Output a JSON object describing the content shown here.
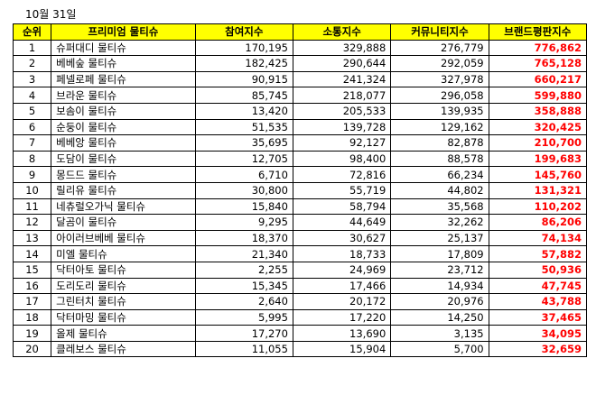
{
  "date_label": "10월 31일",
  "headers": [
    "순위",
    "프리미엄 물티슈",
    "참여지수",
    "소통지수",
    "커뮤니티지수",
    "브랜드평판지수"
  ],
  "rows": [
    [
      "1",
      "슈퍼대디 물티슈",
      "170,195",
      "329,888",
      "276,779",
      "776,862"
    ],
    [
      "2",
      "베베숲 물티슈",
      "182,425",
      "290,644",
      "292,059",
      "765,128"
    ],
    [
      "3",
      "페넬로페 물티슈",
      "90,915",
      "241,324",
      "327,978",
      "660,217"
    ],
    [
      "4",
      "브라운 물티슈",
      "85,745",
      "218,077",
      "296,058",
      "599,880"
    ],
    [
      "5",
      "보솜이 물티슈",
      "13,420",
      "205,533",
      "139,935",
      "358,888"
    ],
    [
      "6",
      "순둥이 물티슈",
      "51,535",
      "139,728",
      "129,162",
      "320,425"
    ],
    [
      "7",
      "베베앙 물티슈",
      "35,695",
      "92,127",
      "82,878",
      "210,700"
    ],
    [
      "8",
      "도담이 물티슈",
      "12,705",
      "98,400",
      "88,578",
      "199,683"
    ],
    [
      "9",
      "몽드드 물티슈",
      "6,710",
      "72,816",
      "66,234",
      "145,760"
    ],
    [
      "10",
      "릴리유 물티슈",
      "30,800",
      "55,719",
      "44,802",
      "131,321"
    ],
    [
      "11",
      "네츄럴오가닉 물티슈",
      "15,840",
      "58,794",
      "35,568",
      "110,202"
    ],
    [
      "12",
      "달곰이 물티슈",
      "9,295",
      "44,649",
      "32,262",
      "86,206"
    ],
    [
      "13",
      "아이러브베베 물티슈",
      "18,370",
      "30,627",
      "25,137",
      "74,134"
    ],
    [
      "14",
      "미엘 물티슈",
      "21,340",
      "18,733",
      "17,809",
      "57,882"
    ],
    [
      "15",
      "닥터아토 물티슈",
      "2,255",
      "24,969",
      "23,712",
      "50,936"
    ],
    [
      "16",
      "도리도리 물티슈",
      "15,345",
      "17,466",
      "14,934",
      "47,745"
    ],
    [
      "17",
      "그린터치 물티슈",
      "2,640",
      "20,172",
      "20,976",
      "43,788"
    ],
    [
      "18",
      "닥터마밍 물티슈",
      "5,995",
      "17,220",
      "14,250",
      "37,465"
    ],
    [
      "19",
      "올제 물티슈",
      "17,270",
      "13,690",
      "3,135",
      "34,095"
    ],
    [
      "20",
      "클레보스 물티슈",
      "11,055",
      "15,904",
      "5,700",
      "32,659"
    ]
  ],
  "colors": {
    "header_background": "#ffff00",
    "brand_index_text": "#ff0000"
  }
}
